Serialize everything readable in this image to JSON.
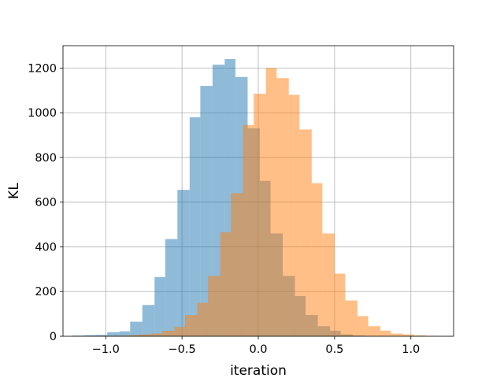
{
  "chart_data": {
    "type": "histogram",
    "title": "",
    "xlabel": "iteration",
    "ylabel": "KL",
    "xlim": [
      -1.28,
      1.28
    ],
    "ylim": [
      0,
      1300
    ],
    "xticks": [
      -1.0,
      -0.5,
      0.0,
      0.5,
      1.0
    ],
    "xtick_labels": [
      "−1.0",
      "−0.5",
      "0.0",
      "0.5",
      "1.0"
    ],
    "yticks": [
      0,
      200,
      400,
      600,
      800,
      1000,
      1200
    ],
    "ytick_labels": [
      "0",
      "200",
      "400",
      "600",
      "800",
      "1000",
      "1200"
    ],
    "grid": true,
    "series": [
      {
        "color": "#1f77b4",
        "alpha": 0.5,
        "bins": [
          {
            "x0": -1.22,
            "x1": -1.14,
            "value": 3
          },
          {
            "x0": -1.14,
            "x1": -1.07,
            "value": 5
          },
          {
            "x0": -1.07,
            "x1": -0.99,
            "value": 6
          },
          {
            "x0": -0.99,
            "x1": -0.91,
            "value": 18
          },
          {
            "x0": -0.91,
            "x1": -0.84,
            "value": 22
          },
          {
            "x0": -0.84,
            "x1": -0.76,
            "value": 65
          },
          {
            "x0": -0.76,
            "x1": -0.68,
            "value": 140
          },
          {
            "x0": -0.68,
            "x1": -0.61,
            "value": 265
          },
          {
            "x0": -0.61,
            "x1": -0.53,
            "value": 435
          },
          {
            "x0": -0.53,
            "x1": -0.45,
            "value": 655
          },
          {
            "x0": -0.45,
            "x1": -0.38,
            "value": 980
          },
          {
            "x0": -0.38,
            "x1": -0.3,
            "value": 1120
          },
          {
            "x0": -0.3,
            "x1": -0.22,
            "value": 1215
          },
          {
            "x0": -0.22,
            "x1": -0.15,
            "value": 1240
          },
          {
            "x0": -0.15,
            "x1": -0.07,
            "value": 1160
          },
          {
            "x0": -0.07,
            "x1": 0.01,
            "value": 930
          },
          {
            "x0": 0.01,
            "x1": 0.08,
            "value": 695
          },
          {
            "x0": 0.08,
            "x1": 0.16,
            "value": 460
          },
          {
            "x0": 0.16,
            "x1": 0.24,
            "value": 270
          },
          {
            "x0": 0.24,
            "x1": 0.31,
            "value": 180
          },
          {
            "x0": 0.31,
            "x1": 0.39,
            "value": 95
          },
          {
            "x0": 0.39,
            "x1": 0.47,
            "value": 45
          },
          {
            "x0": 0.47,
            "x1": 0.54,
            "value": 25
          },
          {
            "x0": 0.54,
            "x1": 0.62,
            "value": 8
          },
          {
            "x0": 0.62,
            "x1": 0.7,
            "value": 3
          }
        ]
      },
      {
        "color": "#ff7f0e",
        "alpha": 0.5,
        "bins": [
          {
            "x0": -1.0,
            "x1": -0.93,
            "value": 2
          },
          {
            "x0": -0.93,
            "x1": -0.85,
            "value": 3
          },
          {
            "x0": -0.85,
            "x1": -0.78,
            "value": 5
          },
          {
            "x0": -0.78,
            "x1": -0.7,
            "value": 8
          },
          {
            "x0": -0.7,
            "x1": -0.63,
            "value": 12
          },
          {
            "x0": -0.63,
            "x1": -0.55,
            "value": 25
          },
          {
            "x0": -0.55,
            "x1": -0.48,
            "value": 42
          },
          {
            "x0": -0.48,
            "x1": -0.4,
            "value": 95
          },
          {
            "x0": -0.4,
            "x1": -0.33,
            "value": 150
          },
          {
            "x0": -0.33,
            "x1": -0.25,
            "value": 270
          },
          {
            "x0": -0.25,
            "x1": -0.18,
            "value": 465
          },
          {
            "x0": -0.18,
            "x1": -0.1,
            "value": 640
          },
          {
            "x0": -0.1,
            "x1": -0.03,
            "value": 945
          },
          {
            "x0": -0.03,
            "x1": 0.05,
            "value": 1085
          },
          {
            "x0": 0.05,
            "x1": 0.12,
            "value": 1200
          },
          {
            "x0": 0.12,
            "x1": 0.2,
            "value": 1155
          },
          {
            "x0": 0.2,
            "x1": 0.27,
            "value": 1080
          },
          {
            "x0": 0.27,
            "x1": 0.35,
            "value": 925
          },
          {
            "x0": 0.35,
            "x1": 0.42,
            "value": 685
          },
          {
            "x0": 0.42,
            "x1": 0.5,
            "value": 460
          },
          {
            "x0": 0.5,
            "x1": 0.57,
            "value": 280
          },
          {
            "x0": 0.57,
            "x1": 0.65,
            "value": 160
          },
          {
            "x0": 0.65,
            "x1": 0.72,
            "value": 90
          },
          {
            "x0": 0.72,
            "x1": 0.8,
            "value": 45
          },
          {
            "x0": 0.8,
            "x1": 0.87,
            "value": 25
          },
          {
            "x0": 0.87,
            "x1": 0.95,
            "value": 12
          },
          {
            "x0": 0.95,
            "x1": 1.02,
            "value": 8
          },
          {
            "x0": 1.02,
            "x1": 1.1,
            "value": 4
          },
          {
            "x0": 1.1,
            "x1": 1.17,
            "value": 2
          }
        ]
      }
    ]
  }
}
